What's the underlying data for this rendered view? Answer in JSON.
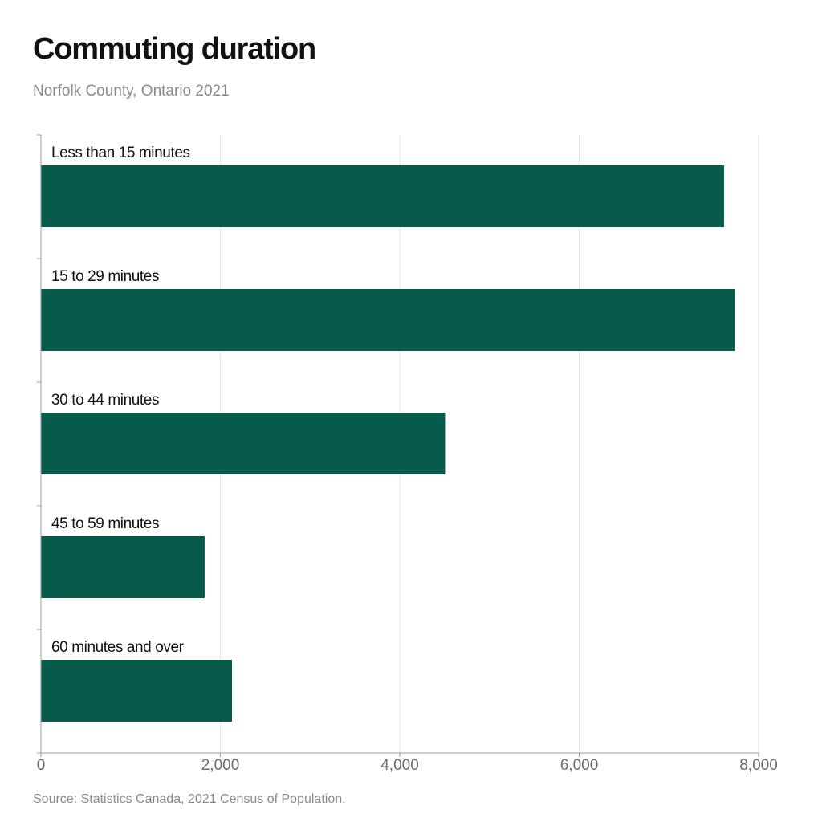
{
  "title": "Commuting duration",
  "subtitle": "Norfolk County, Ontario 2021",
  "source": "Source: Statistics Canada, 2021 Census of Population.",
  "colors": {
    "bar": "#065b4b",
    "grid": "#e6e6e6",
    "axis": "#9a9a9a"
  },
  "chart_data": {
    "type": "bar",
    "orientation": "horizontal",
    "categories": [
      "Less than 15 minutes",
      "15 to 29 minutes",
      "30 to 44 minutes",
      "45 to 59 minutes",
      "60 minutes and over"
    ],
    "values": [
      7615,
      7735,
      4505,
      1825,
      2130
    ],
    "xlim": [
      0,
      8000
    ],
    "xticks": [
      0,
      2000,
      4000,
      6000,
      8000
    ],
    "xtick_labels": [
      "0",
      "2,000",
      "4,000",
      "6,000",
      "8,000"
    ],
    "grid": true,
    "legend": "none"
  }
}
